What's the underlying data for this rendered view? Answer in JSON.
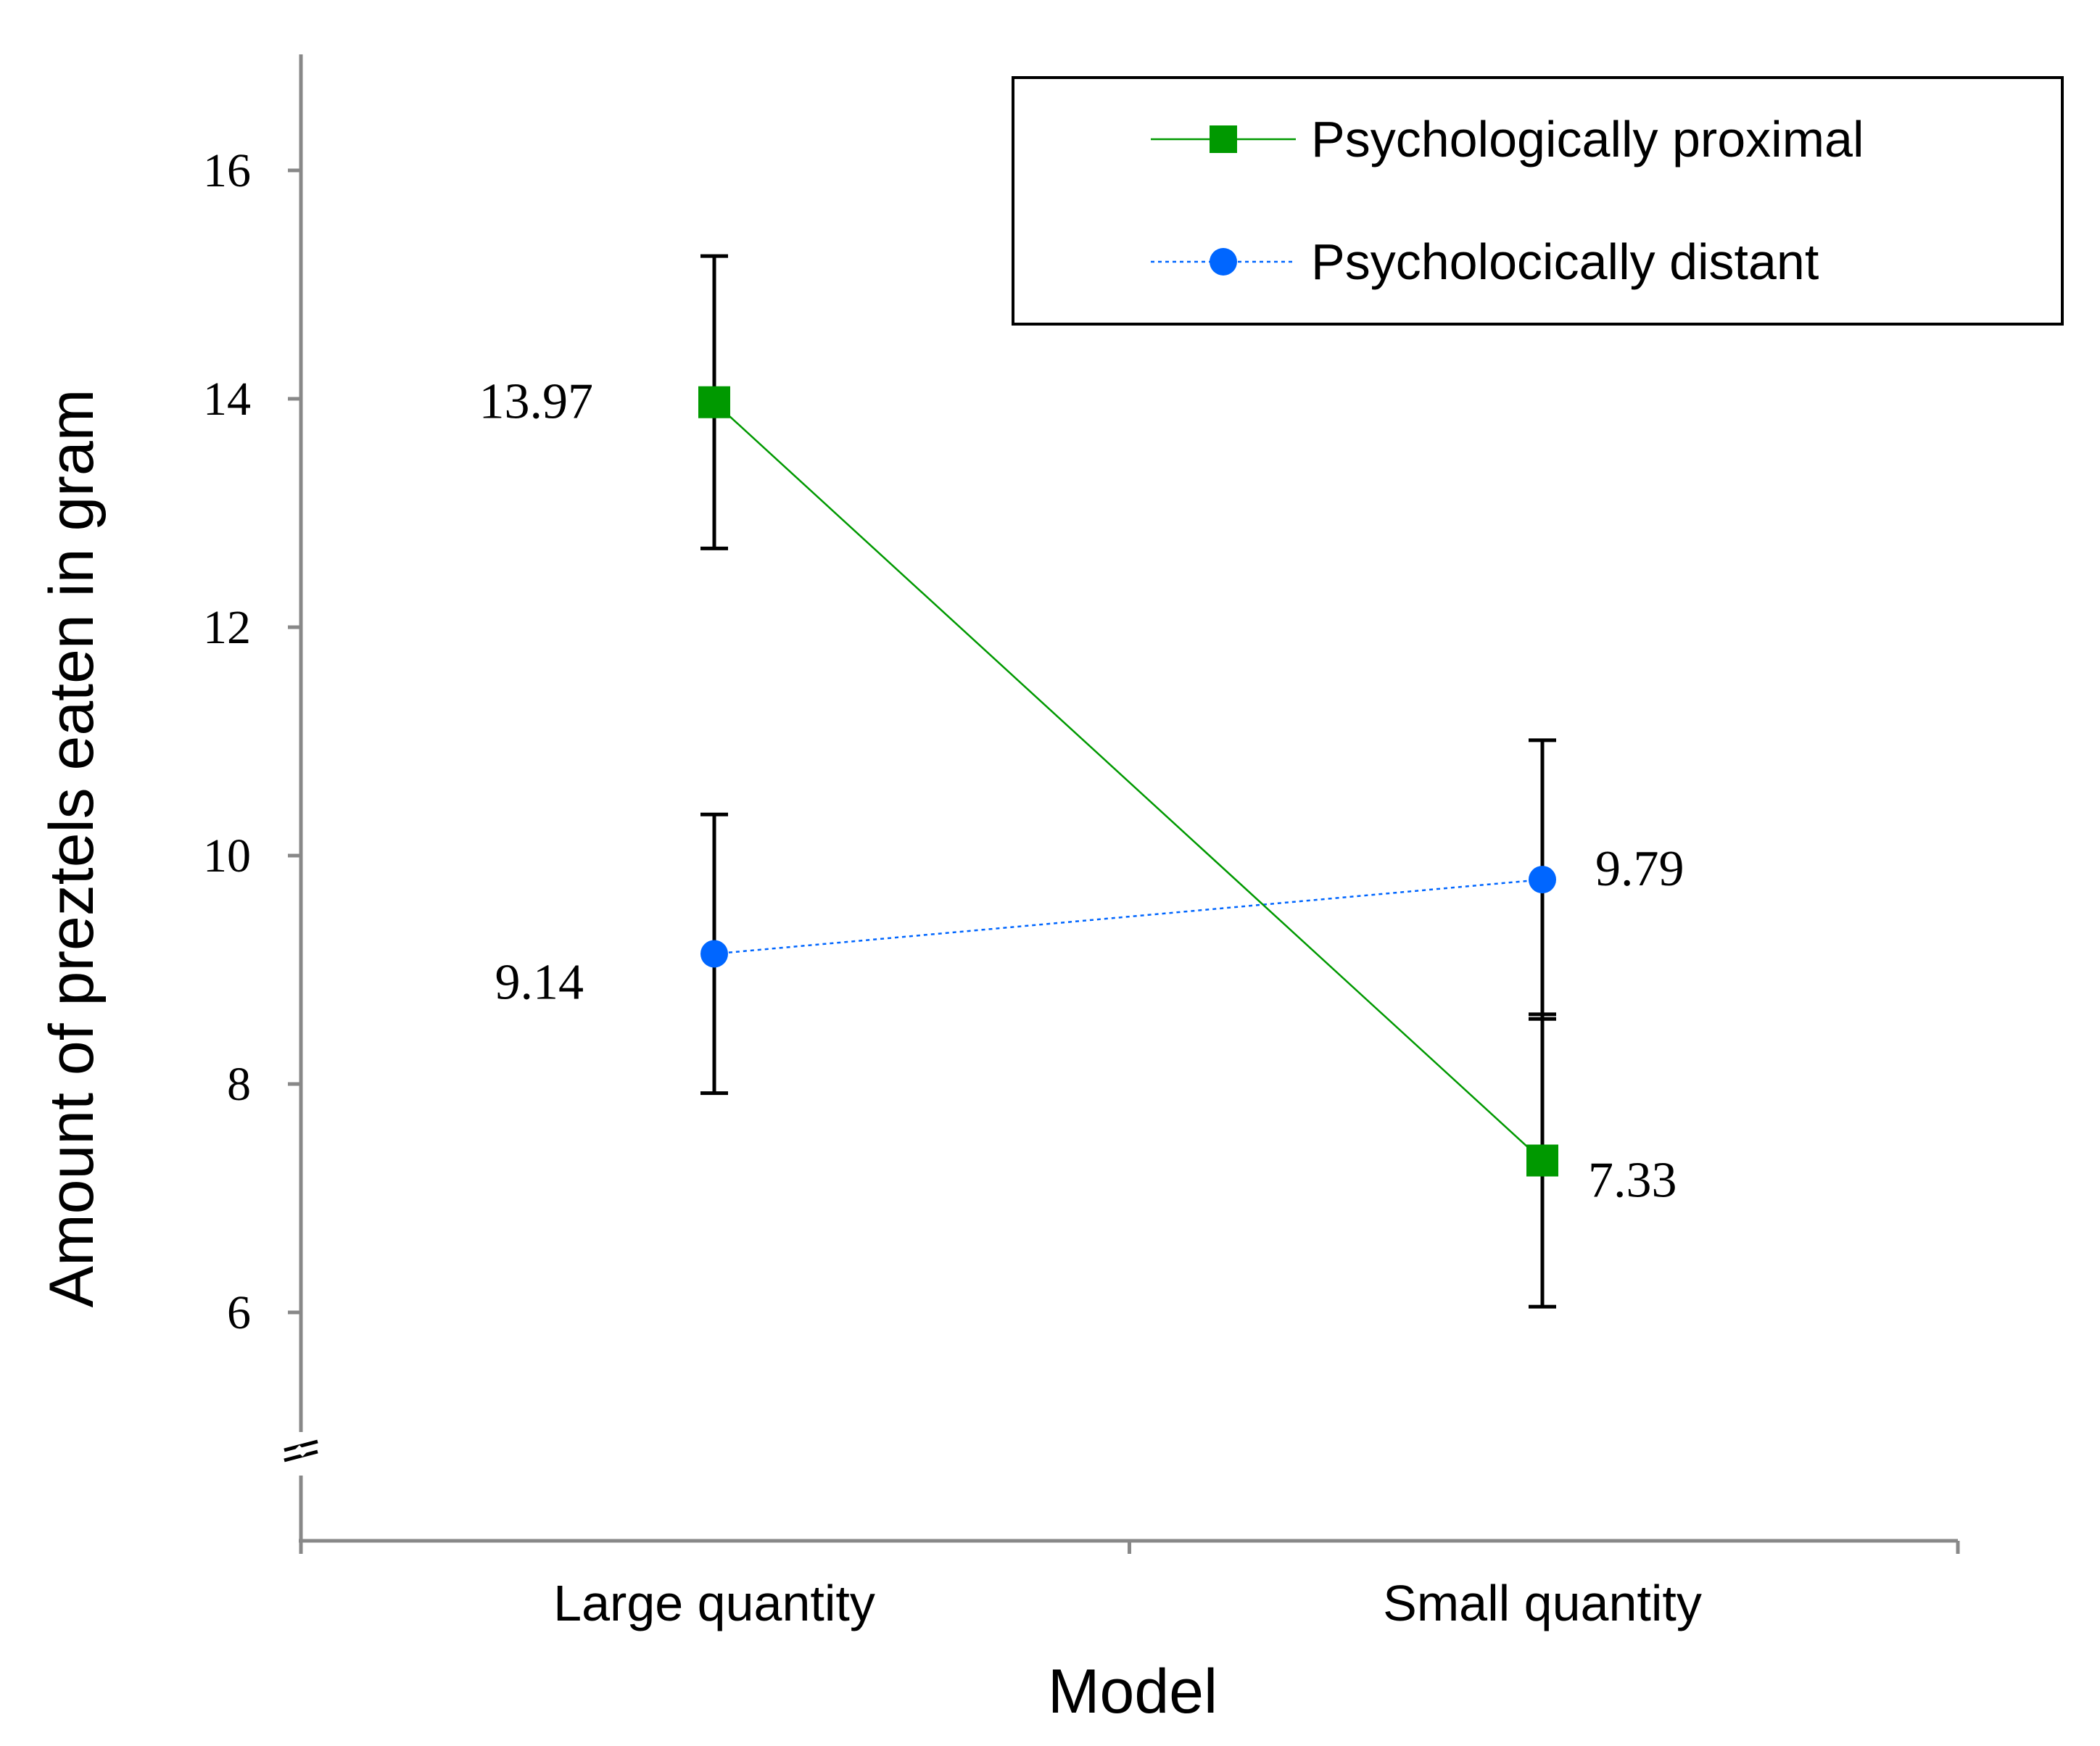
{
  "chart_data": {
    "type": "line",
    "title": "",
    "xlabel": "Model",
    "ylabel": "Amount of preztels eaten in gram",
    "categories": [
      "Large quantity",
      "Small quantity"
    ],
    "ylim": [
      4,
      17
    ],
    "yticks": [
      6,
      8,
      10,
      12,
      14,
      16
    ],
    "axis_break": true,
    "grid": false,
    "legend_position": "top-right",
    "series": [
      {
        "name": "Psychologically proximal",
        "marker": "square",
        "line_style": "solid",
        "color": "#009900",
        "values": [
          13.97,
          7.33
        ],
        "labels": [
          "13.97",
          "7.33"
        ],
        "error_low": [
          12.69,
          6.05
        ],
        "error_high": [
          15.25,
          8.61
        ]
      },
      {
        "name": "Psycholocically distant",
        "marker": "circle",
        "line_style": "dotted",
        "color": "#0066ff",
        "values": [
          9.14,
          9.79
        ],
        "labels": [
          "9.14",
          "9.79"
        ],
        "error_low": [
          7.92,
          8.57
        ],
        "error_high": [
          10.36,
          11.01
        ]
      }
    ]
  }
}
